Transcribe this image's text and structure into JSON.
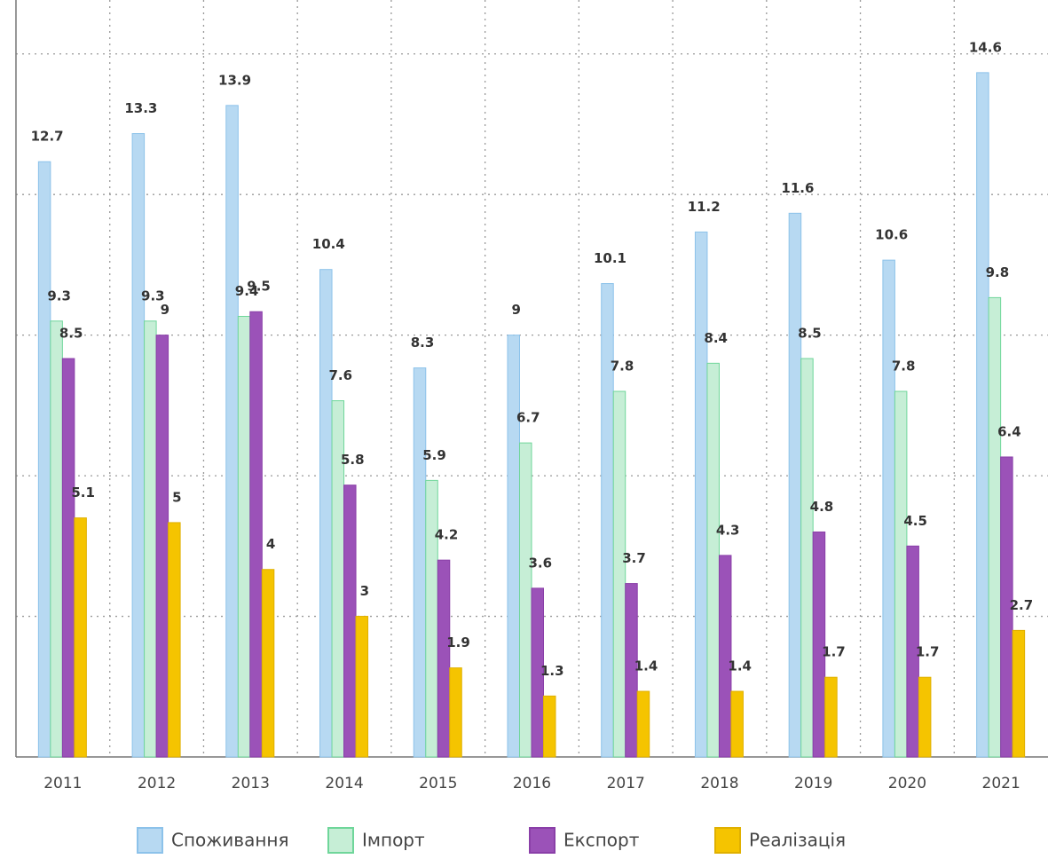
{
  "chart_data": {
    "type": "bar",
    "categories": [
      "2011",
      "2012",
      "2013",
      "2014",
      "2015",
      "2016",
      "2017",
      "2018",
      "2019",
      "2020",
      "2021"
    ],
    "series": [
      {
        "name": "Споживання",
        "color": "#b7d9f2",
        "values": [
          12.7,
          13.3,
          13.9,
          10.4,
          8.3,
          9,
          10.1,
          11.2,
          11.6,
          10.6,
          14.6
        ]
      },
      {
        "name": "Імпорт",
        "color": "#c6eed6",
        "values": [
          9.3,
          9.3,
          9.4,
          7.6,
          5.9,
          6.7,
          7.8,
          8.4,
          8.5,
          7.8,
          9.8
        ]
      },
      {
        "name": "Експорт",
        "color": "#9b52b8",
        "values": [
          8.5,
          9,
          9.5,
          5.8,
          4.2,
          3.6,
          3.7,
          4.3,
          4.8,
          4.5,
          6.4
        ]
      },
      {
        "name": "Реалізація",
        "color": "#f5c400",
        "values": [
          5.1,
          5,
          4,
          3,
          1.9,
          1.3,
          1.4,
          1.4,
          1.7,
          1.7,
          2.7
        ]
      }
    ],
    "ylim": [
      0,
      16.15
    ],
    "yticks": [
      0,
      3,
      6,
      9,
      12,
      15
    ],
    "grid": true
  }
}
